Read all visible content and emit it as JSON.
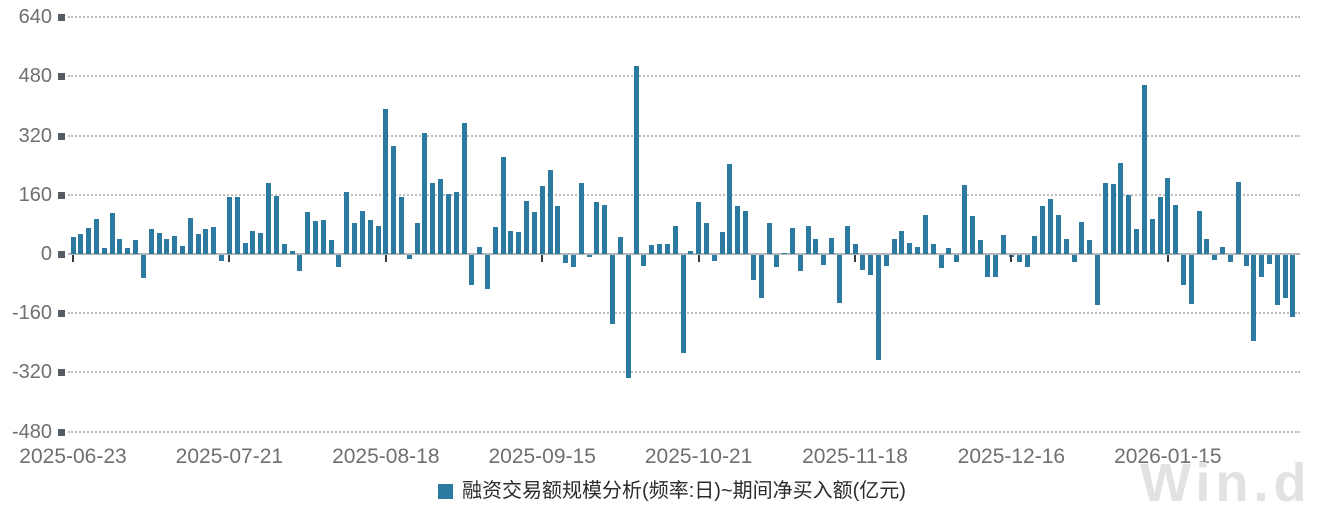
{
  "chart": {
    "legend": "融资交易额规模分析(频率:日)~期间净买入额(亿元)",
    "watermark": "Win.d",
    "colors": {
      "bar": "#2d7aa1",
      "axis_label": "#6f6f6f",
      "gridline": "#bdbdbd",
      "zero_line": "#b4b7b9",
      "axis_square": "#555c63",
      "legend_text": "#2b2b2b",
      "watermark": "#e2e2e2"
    }
  },
  "chart_data": {
    "type": "bar",
    "title": "融资交易额规模分析(频率:日)~期间净买入额(亿元)",
    "ylabel": "期间净买入额(亿元)",
    "ylim": [
      -480,
      640
    ],
    "ytick_interval": 160,
    "yticks": [
      640,
      480,
      320,
      160,
      0,
      -160,
      -320,
      -480
    ],
    "grid": "dotted horizontal",
    "legend_position": "bottom-center",
    "xtick_labels": [
      "2025-06-23",
      "2025-07-21",
      "2025-08-18",
      "2025-09-15",
      "2025-10-21",
      "2025-11-18",
      "2025-12-16",
      "2026-01-15"
    ],
    "xtick_indices": [
      0,
      20,
      40,
      60,
      80,
      100,
      120,
      140
    ],
    "values": [
      45,
      53,
      70,
      95,
      15,
      110,
      40,
      15,
      38,
      -62,
      67,
      58,
      40,
      49,
      22,
      98,
      53,
      68,
      73,
      -16,
      155,
      153,
      31,
      62,
      58,
      193,
      156,
      27,
      9,
      -42,
      114,
      89,
      92,
      38,
      -31,
      169,
      83,
      117,
      92,
      77,
      391,
      291,
      155,
      -10,
      84,
      327,
      193,
      202,
      162,
      169,
      353,
      -80,
      18,
      -92,
      73,
      262,
      62,
      60,
      144,
      113,
      184,
      227,
      129,
      -22,
      -31,
      193,
      -6,
      142,
      133,
      -185,
      46,
      -332,
      507,
      -29,
      24,
      27,
      28,
      77,
      -264,
      7,
      142,
      84,
      -15,
      60,
      244,
      129,
      117,
      -67,
      -116,
      83,
      -31,
      2,
      71,
      -43,
      77,
      42,
      -27,
      44,
      -129,
      77,
      28,
      -40,
      -53,
      -284,
      -29,
      42,
      62,
      31,
      18,
      105,
      27,
      -34,
      15,
      -18,
      187,
      104,
      37,
      -58,
      -60,
      52,
      -5,
      -20,
      -31,
      49,
      129,
      149,
      105,
      40,
      -18,
      86,
      38,
      -136,
      193,
      188,
      247,
      160,
      69,
      458,
      95,
      153,
      206,
      133,
      -80,
      -132,
      116,
      42,
      -13,
      20,
      -18,
      194,
      -30,
      -232,
      -60,
      -25,
      -135,
      -115,
      -168
    ]
  }
}
